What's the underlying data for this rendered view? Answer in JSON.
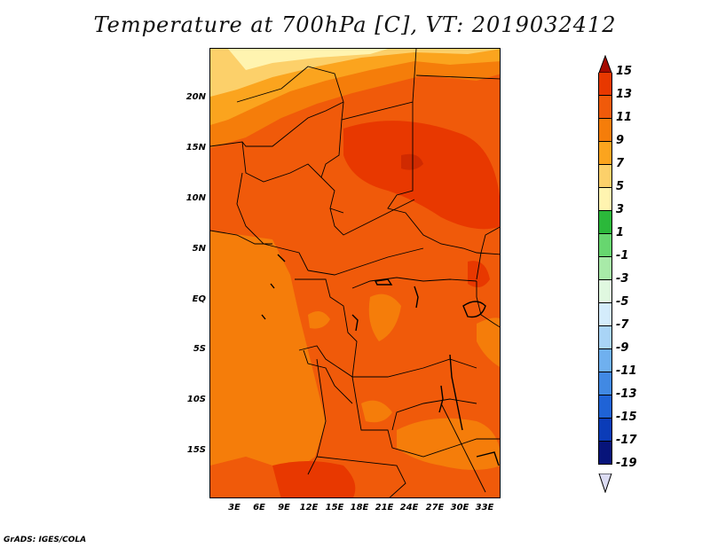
{
  "title": "Temperature at 700hPa [C], VT: 2019032412",
  "credit": "GrADS: IGES/COLA",
  "map": {
    "lat_labels": [
      "20N",
      "15N",
      "10N",
      "5N",
      "EQ",
      "5S",
      "10S",
      "15S"
    ],
    "lon_labels": [
      "3E",
      "6E",
      "9E",
      "12E",
      "15E",
      "18E",
      "21E",
      "24E",
      "27E",
      "30E",
      "33E"
    ]
  },
  "colorbar": {
    "labels": [
      "15",
      "13",
      "11",
      "9",
      "7",
      "5",
      "3",
      "1",
      "-1",
      "-3",
      "-5",
      "-7",
      "-9",
      "-11",
      "-13",
      "-15",
      "-17",
      "-19"
    ],
    "colors": [
      "#a50a00",
      "#e83800",
      "#f05a0a",
      "#f57d0a",
      "#fba41e",
      "#fcd06a",
      "#fff4b0",
      "#2bb83a",
      "#67d66f",
      "#a8eaa8",
      "#e0f8e0",
      "#d4ecfb",
      "#a9d4f6",
      "#6fb0ef",
      "#4189e3",
      "#1f63d6",
      "#0b3cb8",
      "#07147a",
      "#dcdcf4"
    ]
  }
}
